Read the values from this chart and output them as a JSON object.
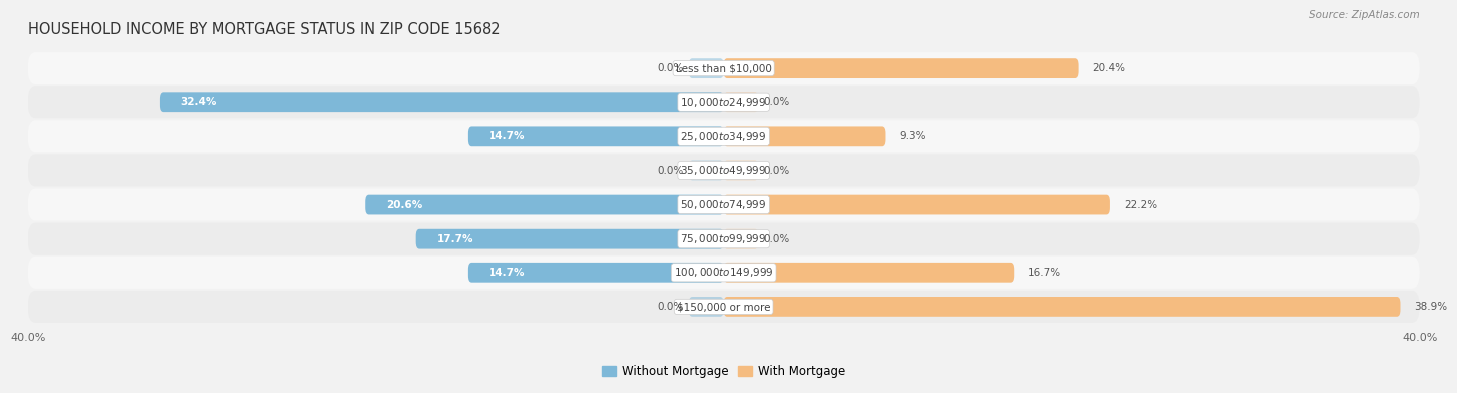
{
  "title": "HOUSEHOLD INCOME BY MORTGAGE STATUS IN ZIP CODE 15682",
  "source": "Source: ZipAtlas.com",
  "categories": [
    "Less than $10,000",
    "$10,000 to $24,999",
    "$25,000 to $34,999",
    "$35,000 to $49,999",
    "$50,000 to $74,999",
    "$75,000 to $99,999",
    "$100,000 to $149,999",
    "$150,000 or more"
  ],
  "without_mortgage": [
    0.0,
    32.4,
    14.7,
    0.0,
    20.6,
    17.7,
    14.7,
    0.0
  ],
  "with_mortgage": [
    20.4,
    0.0,
    9.3,
    0.0,
    22.2,
    0.0,
    16.7,
    38.9
  ],
  "color_without": "#7eb8d8",
  "color_with": "#f5bc80",
  "axis_limit": 40.0,
  "bg_color": "#f2f2f2",
  "row_bg_even": "#f7f7f7",
  "row_bg_odd": "#ececec",
  "legend_label_without": "Without Mortgage",
  "legend_label_with": "With Mortgage",
  "title_fontsize": 10.5,
  "source_fontsize": 7.5,
  "label_fontsize": 7.5,
  "value_fontsize": 7.5
}
